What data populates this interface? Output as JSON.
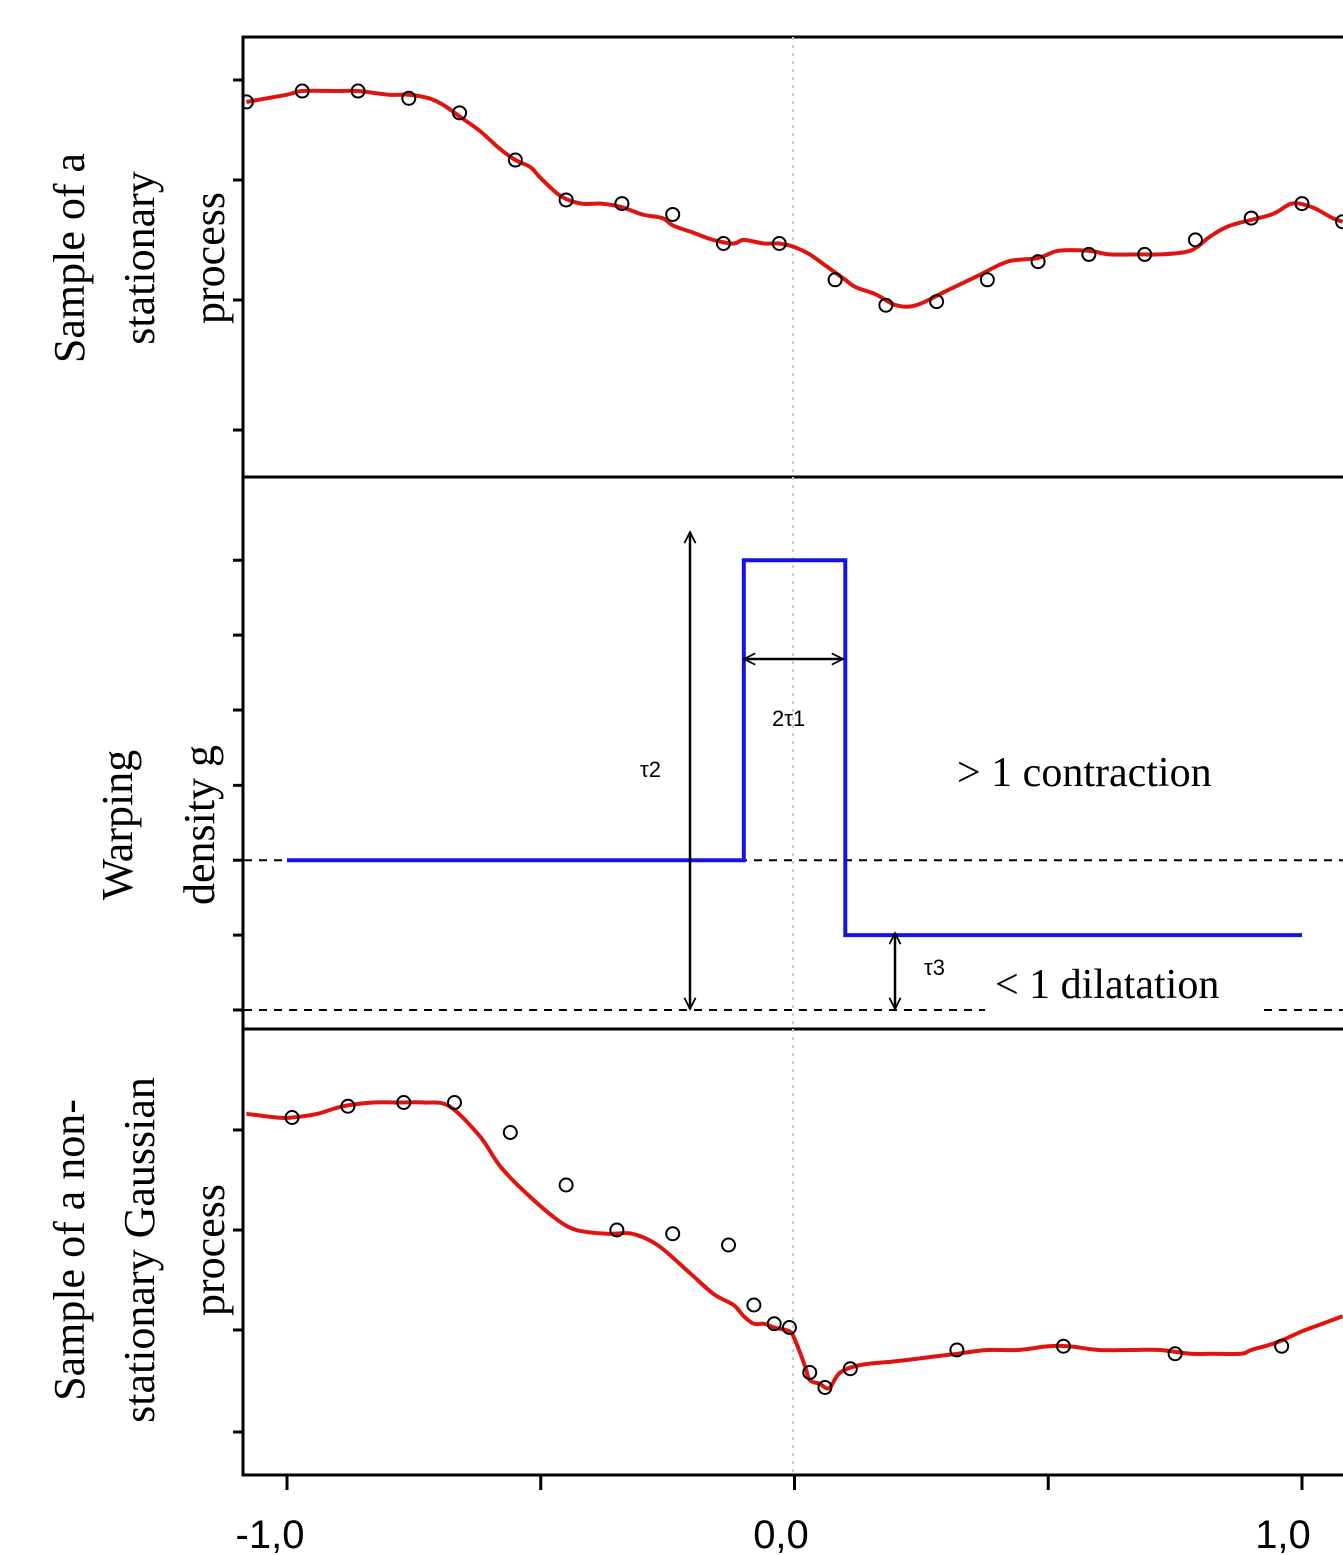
{
  "colors": {
    "curve": "#e0140f",
    "step": "#1414e0",
    "axis": "#000000",
    "guide": "#000000",
    "vline": "#cccccc"
  },
  "panels": {
    "top": {
      "ylabel_lines": [
        "Sample of a",
        "stationary",
        "process"
      ]
    },
    "middle": {
      "ylabel_lines": [
        "Warping",
        "density g"
      ],
      "annotations": {
        "tau2": "τ2",
        "two_tau1": "2τ1",
        "tau3": "τ3",
        "contraction": "> 1 contraction",
        "dilatation": "< 1 dilatation"
      }
    },
    "bottom": {
      "ylabel_lines": [
        "Sample of a non-",
        "stationary Gaussian",
        "process"
      ]
    }
  },
  "chart_data": [
    {
      "type": "line",
      "panel": "top",
      "xlim": [
        -1.08,
        1.08
      ],
      "ylim": [
        0,
        1
      ],
      "series": [
        {
          "x": [
            -1.08,
            -1.0,
            -0.97,
            -0.9,
            -0.86,
            -0.8,
            -0.76,
            -0.72,
            -0.69,
            -0.66,
            -0.62,
            -0.58,
            -0.55,
            -0.52,
            -0.5,
            -0.46,
            -0.42,
            -0.38,
            -0.34,
            -0.3,
            -0.26,
            -0.24,
            -0.2,
            -0.16,
            -0.12,
            -0.1,
            -0.06,
            -0.03,
            0.0,
            0.03,
            0.06,
            0.1,
            0.12,
            0.16,
            0.2,
            0.24,
            0.3,
            0.36,
            0.42,
            0.48,
            0.52,
            0.58,
            0.62,
            0.68,
            0.72,
            0.78,
            0.82,
            0.86,
            0.94,
            0.98,
            1.02,
            1.06,
            1.08
          ],
          "y": [
            0.89,
            0.91,
            0.92,
            0.92,
            0.92,
            0.91,
            0.91,
            0.9,
            0.88,
            0.85,
            0.81,
            0.76,
            0.73,
            0.71,
            0.68,
            0.63,
            0.61,
            0.61,
            0.6,
            0.58,
            0.57,
            0.55,
            0.53,
            0.51,
            0.5,
            0.51,
            0.5,
            0.5,
            0.49,
            0.47,
            0.44,
            0.4,
            0.38,
            0.36,
            0.33,
            0.33,
            0.37,
            0.41,
            0.45,
            0.46,
            0.48,
            0.48,
            0.47,
            0.47,
            0.47,
            0.48,
            0.52,
            0.55,
            0.58,
            0.61,
            0.6,
            0.57,
            0.56
          ]
        }
      ],
      "markers": {
        "x": [
          -1.08,
          -0.97,
          -0.86,
          -0.76,
          -0.66,
          -0.55,
          -0.45,
          -0.34,
          -0.24,
          -0.14,
          -0.03,
          0.08,
          0.18,
          0.28,
          0.38,
          0.48,
          0.58,
          0.69,
          0.79,
          0.9,
          1.0,
          1.08
        ],
        "y": [
          0.89,
          0.92,
          0.92,
          0.9,
          0.86,
          0.73,
          0.62,
          0.61,
          0.58,
          0.5,
          0.5,
          0.4,
          0.33,
          0.34,
          0.4,
          0.45,
          0.47,
          0.47,
          0.51,
          0.57,
          0.61,
          0.56
        ]
      }
    },
    {
      "type": "line",
      "panel": "middle",
      "xlim": [
        -1.08,
        1.08
      ],
      "ylim": [
        0,
        1
      ],
      "y_tick_values": [
        0.0,
        0.156,
        0.312,
        0.468,
        0.625,
        0.781,
        0.937
      ],
      "series": [
        {
          "name": "g",
          "x": [
            -1.0,
            -0.1,
            -0.1,
            0.1,
            0.1,
            1.0
          ],
          "y": [
            0.312,
            0.312,
            0.937,
            0.937,
            0.156,
            0.156
          ]
        }
      ],
      "reference_lines": [
        {
          "y": 0.312
        },
        {
          "y": 0.0
        }
      ]
    },
    {
      "type": "line",
      "panel": "bottom",
      "xlim": [
        -1.08,
        1.08
      ],
      "ylim": [
        0,
        1
      ],
      "series": [
        {
          "x": [
            -1.08,
            -1.02,
            -0.99,
            -0.94,
            -0.89,
            -0.83,
            -0.78,
            -0.73,
            -0.68,
            -0.62,
            -0.58,
            -0.53,
            -0.47,
            -0.43,
            -0.37,
            -0.32,
            -0.27,
            -0.21,
            -0.16,
            -0.12,
            -0.1,
            -0.08,
            -0.06,
            -0.04,
            -0.01,
            0.0,
            0.02,
            0.03,
            0.05,
            0.06,
            0.07,
            0.09,
            0.13,
            0.2,
            0.26,
            0.32,
            0.38,
            0.44,
            0.5,
            0.54,
            0.6,
            0.66,
            0.72,
            0.78,
            0.82,
            0.88,
            0.9,
            0.95,
            1.0,
            1.04,
            1.08
          ],
          "y": [
            0.87,
            0.86,
            0.86,
            0.87,
            0.89,
            0.9,
            0.9,
            0.9,
            0.89,
            0.81,
            0.73,
            0.66,
            0.59,
            0.56,
            0.55,
            0.55,
            0.52,
            0.45,
            0.39,
            0.36,
            0.33,
            0.31,
            0.31,
            0.3,
            0.29,
            0.27,
            0.2,
            0.16,
            0.15,
            0.14,
            0.14,
            0.18,
            0.2,
            0.21,
            0.22,
            0.23,
            0.24,
            0.24,
            0.25,
            0.25,
            0.24,
            0.24,
            0.24,
            0.23,
            0.23,
            0.23,
            0.24,
            0.26,
            0.29,
            0.31,
            0.33
          ]
        }
      ],
      "markers": {
        "x": [
          -0.99,
          -0.88,
          -0.77,
          -0.67,
          -0.56,
          -0.45,
          -0.35,
          -0.24,
          -0.13,
          -0.08,
          -0.04,
          -0.01,
          0.03,
          0.06,
          0.11,
          0.32,
          0.53,
          0.75,
          0.96
        ],
        "y": [
          0.86,
          0.89,
          0.9,
          0.9,
          0.82,
          0.68,
          0.56,
          0.55,
          0.52,
          0.36,
          0.31,
          0.3,
          0.18,
          0.14,
          0.19,
          0.24,
          0.25,
          0.23,
          0.25
        ]
      }
    }
  ],
  "x_axis": {
    "tick_values": [
      -1.0,
      -0.5,
      0.0,
      0.5,
      1.0
    ],
    "labels": [
      {
        "value": -1.0,
        "text": "-1,0"
      },
      {
        "value": 0.0,
        "text": "0,0"
      },
      {
        "value": 1.0,
        "text": "1,0"
      }
    ]
  }
}
